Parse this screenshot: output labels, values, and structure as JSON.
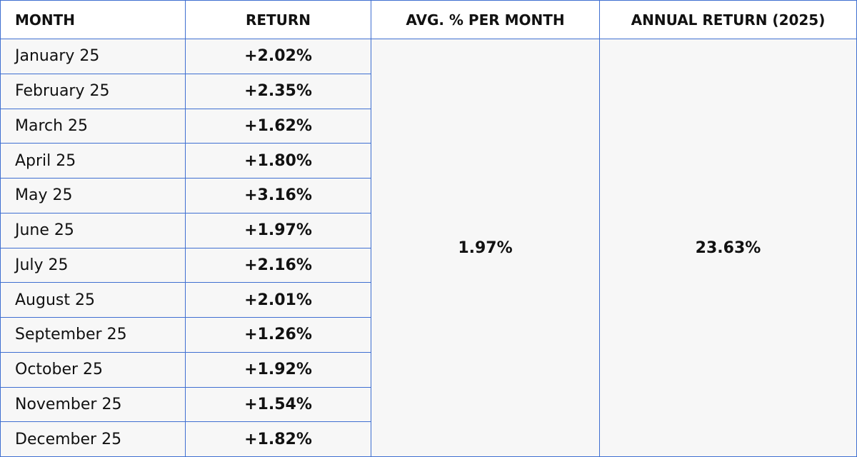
{
  "table": {
    "header": [
      "MONTH",
      "RETURN",
      "AVG. % PER MONTH",
      "ANNUAL RETURN (2025)"
    ],
    "rows": [
      [
        "January 25",
        "+2.02%"
      ],
      [
        "February 25",
        "+2.35%"
      ],
      [
        "March 25",
        "+1.62%"
      ],
      [
        "April 25",
        "+1.80%"
      ],
      [
        "May 25",
        "+3.16%"
      ],
      [
        "June 25",
        "+1.97%"
      ],
      [
        "July 25",
        "+2.16%"
      ],
      [
        "August 25",
        "+2.01%"
      ],
      [
        "September 25",
        "+1.26%"
      ],
      [
        "October 25",
        "+1.92%"
      ],
      [
        "November 25",
        "+1.54%"
      ],
      [
        "December 25",
        "+1.82%"
      ]
    ],
    "avg_per_month": "1.97%",
    "annual_return": "23.63%"
  }
}
